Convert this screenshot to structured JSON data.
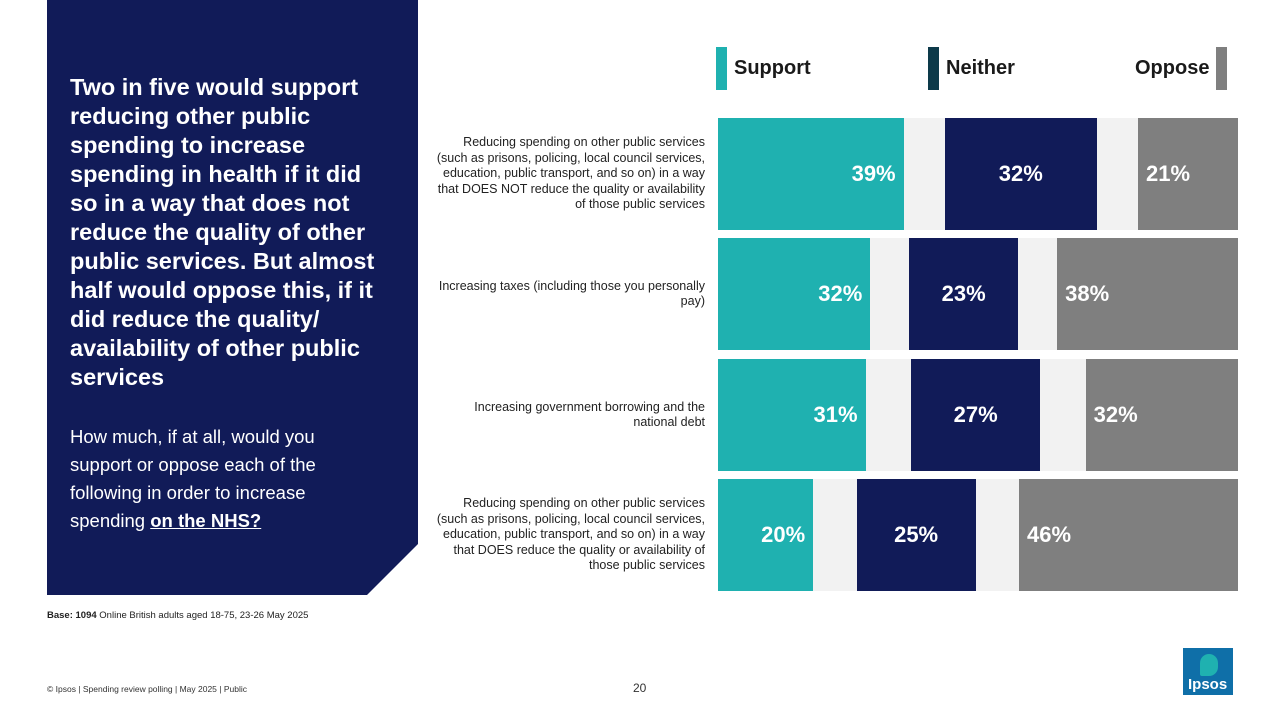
{
  "headline": "Two in five would support reducing other public spending to increase spending in health if it did so in a way that does not reduce the quality of other public services. But almost half would oppose this, if it did reduce the quality/ availability of other public services",
  "question": {
    "text": "How much, if at all, would you support or oppose each of the following in order to increase spending ",
    "emphasis": "on the NHS?"
  },
  "base_note": {
    "label": "Base:",
    "count": "1094",
    "text": "Online British adults aged 18-75, 23-26 May 2025"
  },
  "footer": "© Ipsos | Spending review polling | May 2025 | Public",
  "page_number": "20",
  "logo_text": "Ipsos",
  "colors": {
    "support": "#1fb1b0",
    "neither": "#111b58",
    "oppose": "#7f7f7f",
    "gap": "#f2f2f2",
    "neither_swatch": "#0d3a4a"
  },
  "chart_data": {
    "type": "bar",
    "orientation": "horizontal",
    "stacked": true,
    "legend_position": "top",
    "categories": [
      "Reducing spending on other public services (such as prisons, policing, local council services, education, public transport, and so on) in a way that DOES NOT reduce the quality or availability of those public services",
      "Increasing taxes (including those you personally pay)",
      "Increasing government borrowing and the national debt",
      "Reducing spending on other public services (such as prisons, policing, local council services, education, public transport, and so on) in a way that DOES reduce the quality or availability of those public services"
    ],
    "series": [
      {
        "name": "Support",
        "values": [
          39,
          32,
          31,
          20
        ],
        "labels": [
          "39%",
          "32%",
          "31%",
          "20%"
        ]
      },
      {
        "name": "Neither",
        "values": [
          32,
          23,
          27,
          25
        ],
        "labels": [
          "32%",
          "23%",
          "27%",
          "25%"
        ]
      },
      {
        "name": "Oppose",
        "values": [
          21,
          38,
          32,
          46
        ],
        "labels": [
          "21%",
          "38%",
          "32%",
          "46%"
        ]
      }
    ]
  }
}
